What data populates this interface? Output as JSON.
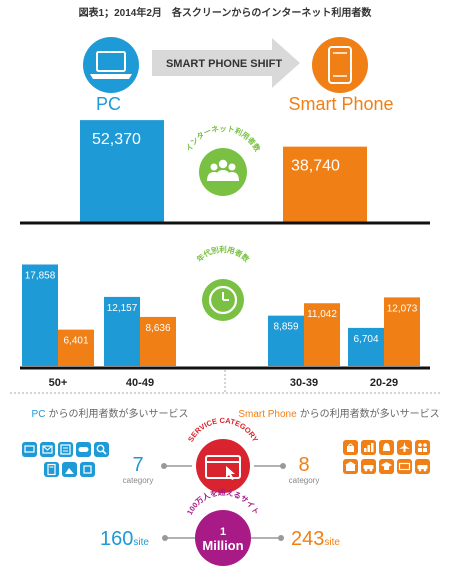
{
  "header": {
    "title": "図表1；2014年2月　各スクリーンからのインターネット利用者数"
  },
  "shift_banner": {
    "label": "SMART PHONE SHIFT",
    "left_label": "PC",
    "right_label": "Smart Phone"
  },
  "badges": {
    "internet_users": "インターネット利用者数",
    "age_users": "年代別利用者数",
    "service_category": "SERVICE CATEGORY",
    "million_arc": "100万人を超えるサイト",
    "million_number": "1",
    "million_word": "Million"
  },
  "services": {
    "pc_title_brand": "PC",
    "pc_title_rest": "からの利用者数が多いサービス",
    "sp_title_brand": "Smart Phone",
    "sp_title_rest": "からの利用者数が多いサービス",
    "pc_category_count": "7",
    "sp_category_count": "8",
    "category_word": "category",
    "pc_site_count": "160",
    "sp_site_count": "243",
    "site_word": "site",
    "pc_icons": [
      "tv-icon",
      "mail-icon",
      "newspaper-icon",
      "gamepad-icon",
      "search-icon",
      "calculator-icon",
      "landscape-icon",
      "postbox-icon"
    ],
    "sp_icons": [
      "shopping-bags-icon",
      "bar-chart-icon",
      "bell-icon",
      "airplane-icon",
      "people-icon",
      "store-icon",
      "car-icon",
      "graduation-icon",
      "ticket-icon",
      "car-small-icon"
    ]
  },
  "colors": {
    "pc": "#1e9ad6",
    "smartphone": "#f07f16",
    "green": "#7ac143",
    "purple": "#a81b87",
    "red": "#d9232e",
    "banner": "#d9d9d9"
  },
  "chart_data": [
    {
      "type": "bar",
      "categories": [
        "PC",
        "Smart Phone"
      ],
      "values": [
        52370,
        38740
      ],
      "ylim": [
        0,
        55000
      ]
    },
    {
      "type": "bar",
      "categories": [
        "50+",
        "40-49",
        "30-39",
        "20-29"
      ],
      "series": [
        {
          "values": [
            17858,
            12157,
            8859,
            6704
          ]
        },
        {
          "values": [
            6401,
            8636,
            11042,
            12073
          ]
        }
      ],
      "ylim": [
        0,
        19000
      ]
    }
  ]
}
